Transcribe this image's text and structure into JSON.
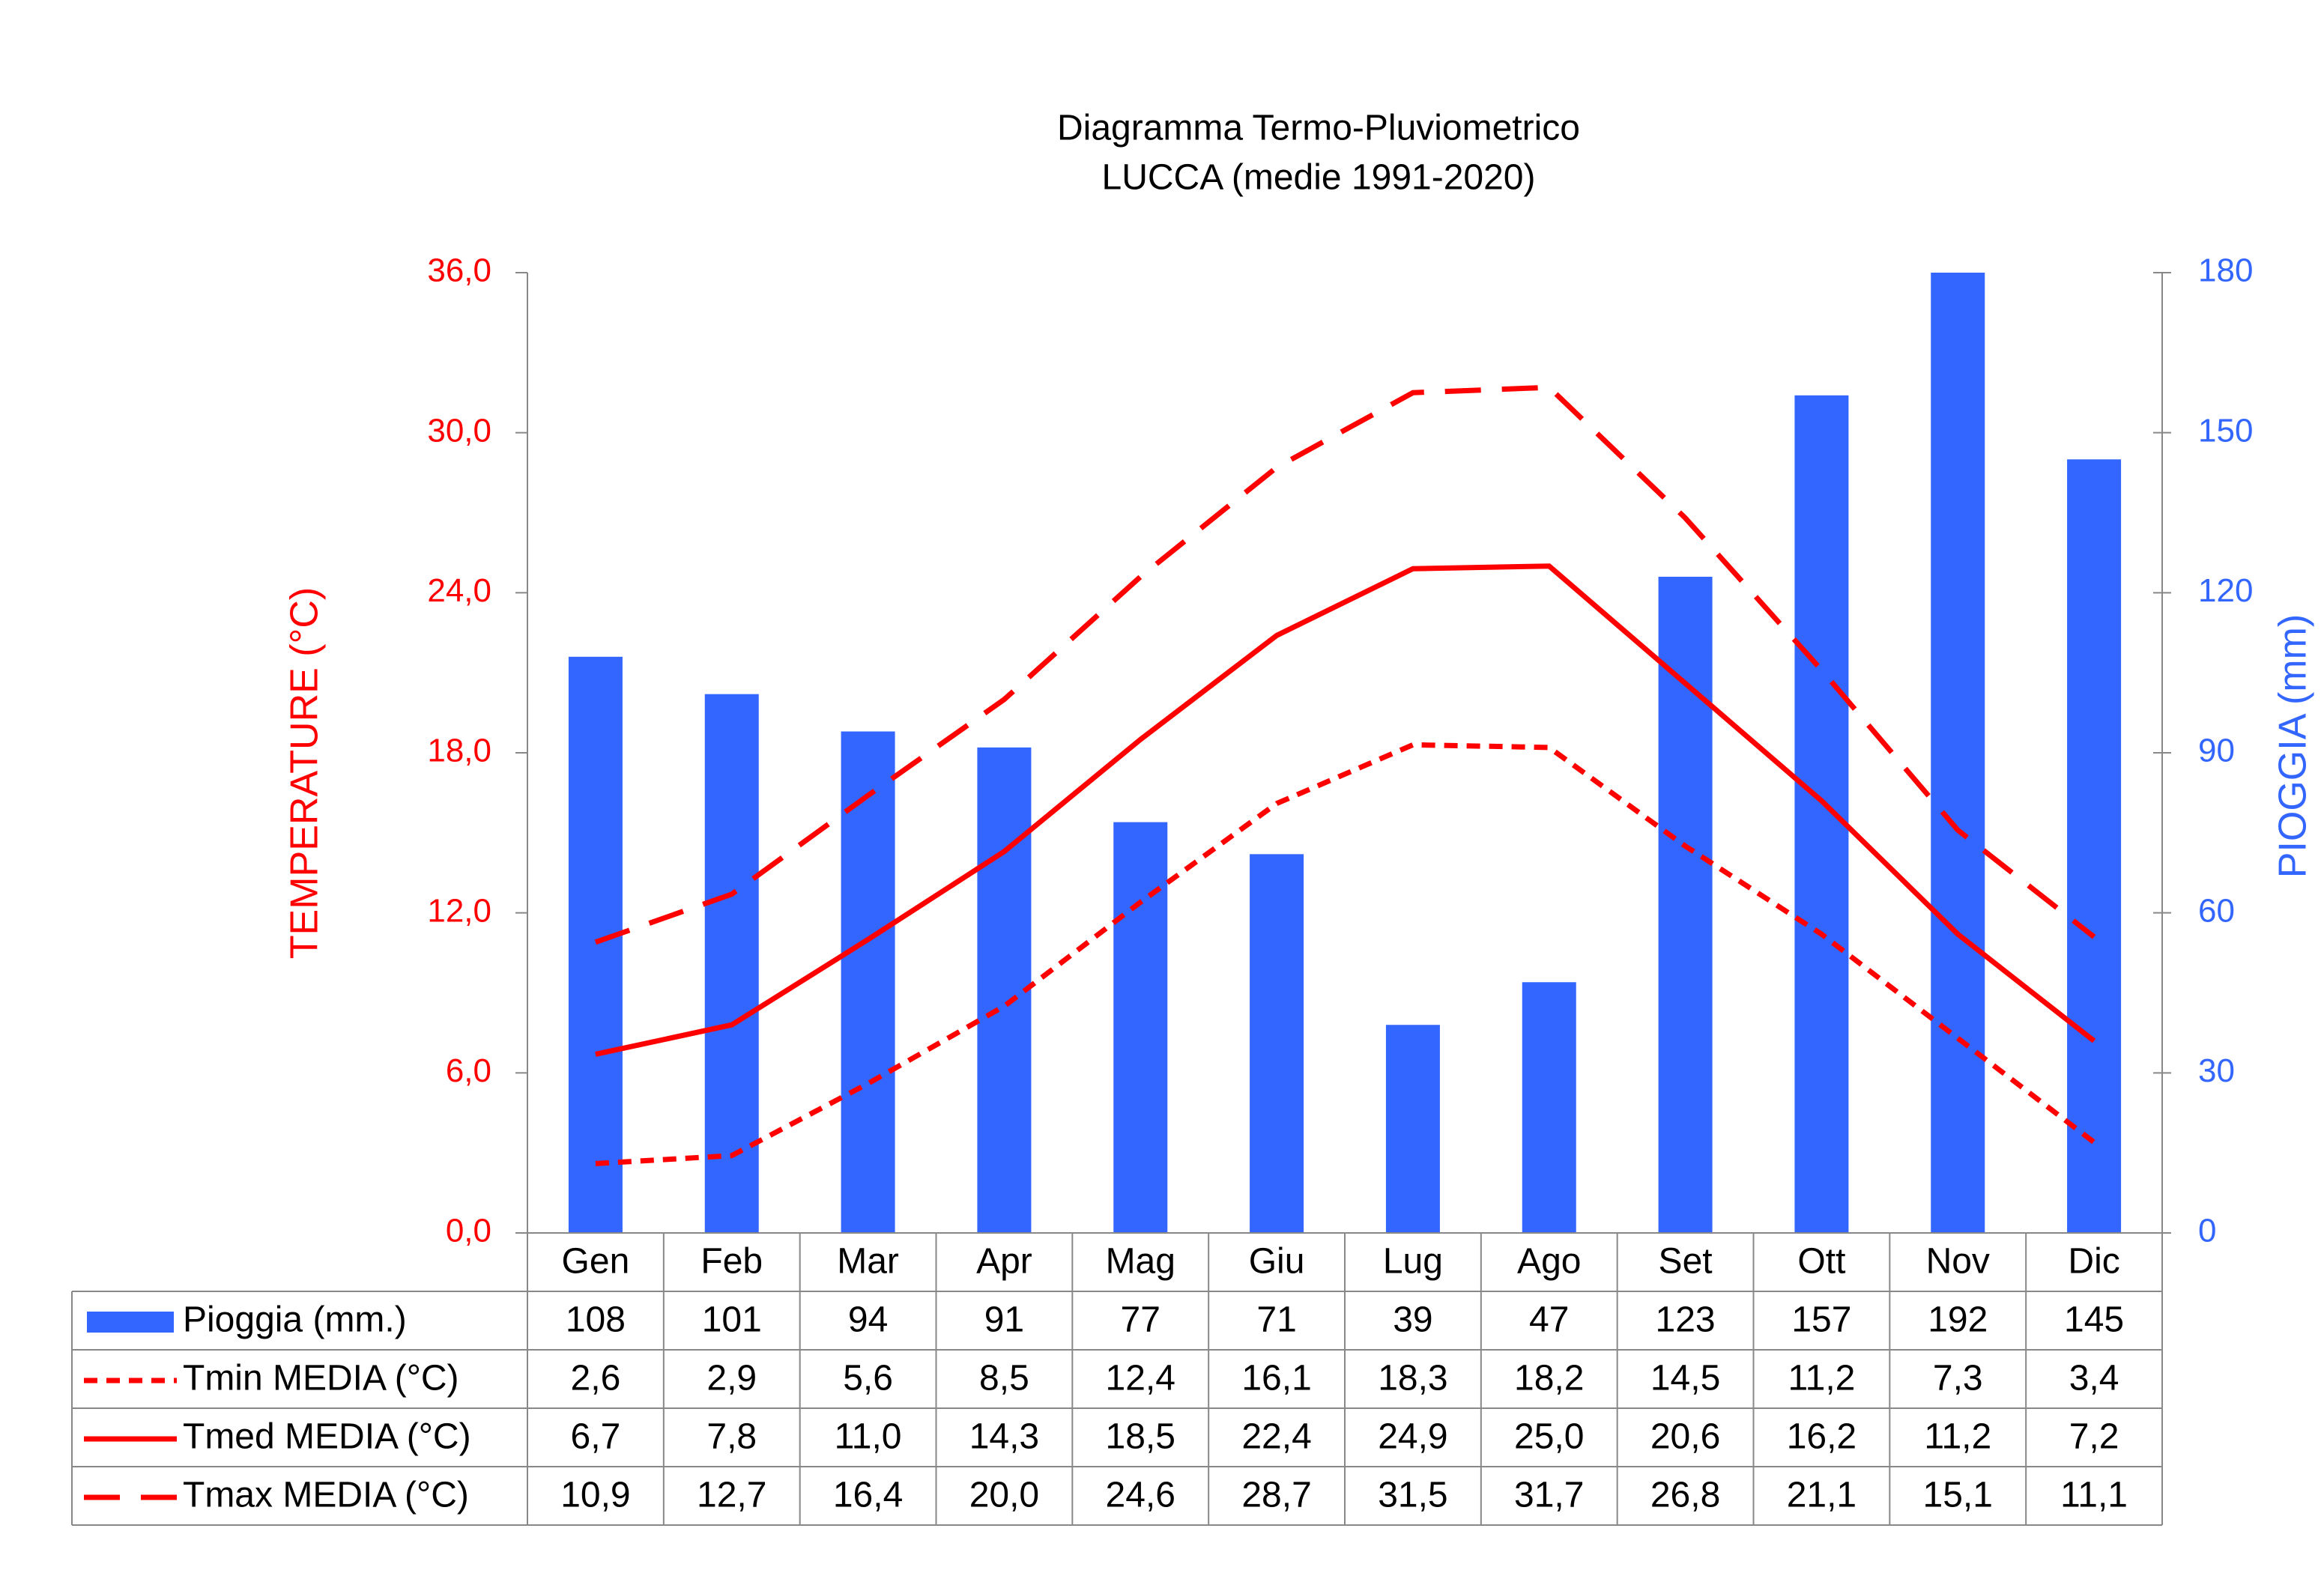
{
  "chart_data": {
    "type": "combo",
    "title": "Diagramma Termo-Pluviometrico",
    "subtitle": "LUCCA (medie 1991-2020)",
    "y_label": "TEMPERATURE (°C)",
    "y2_label": "PIOGGIA (mm)",
    "categories": [
      "Gen",
      "Feb",
      "Mar",
      "Apr",
      "Mag",
      "Giu",
      "Lug",
      "Ago",
      "Set",
      "Ott",
      "Nov",
      "Dic"
    ],
    "ylim": [
      0,
      36
    ],
    "yticks": [
      {
        "value": 0,
        "label": "0,0"
      },
      {
        "value": 6,
        "label": "6,0"
      },
      {
        "value": 12,
        "label": "12,0"
      },
      {
        "value": 18,
        "label": "18,0"
      },
      {
        "value": 24,
        "label": "24,0"
      },
      {
        "value": 30,
        "label": "30,0"
      },
      {
        "value": 36,
        "label": "36,0"
      }
    ],
    "y2lim": [
      0,
      180
    ],
    "y2ticks": [
      0,
      30,
      60,
      90,
      120,
      150,
      180
    ],
    "y_color": "#ff0000",
    "y2_color": "#3366ff",
    "series": [
      {
        "name": "Pioggia (mm.)",
        "kind": "bar",
        "axis": "y2",
        "color": "#3366ff",
        "values": [
          108,
          101,
          94,
          91,
          77,
          71,
          39,
          47,
          123,
          157,
          192,
          145
        ]
      },
      {
        "name": "Tmin MEDIA (°C)",
        "kind": "line",
        "linestyle": "dotted",
        "color": "#ff0000",
        "values": [
          2.6,
          2.9,
          5.6,
          8.5,
          12.4,
          16.1,
          18.3,
          18.2,
          14.5,
          11.2,
          7.3,
          3.4
        ],
        "value_labels": [
          "2,6",
          "2,9",
          "5,6",
          "8,5",
          "12,4",
          "16,1",
          "18,3",
          "18,2",
          "14,5",
          "11,2",
          "7,3",
          "3,4"
        ]
      },
      {
        "name": "Tmed MEDIA (°C)",
        "kind": "line",
        "linestyle": "solid",
        "color": "#ff0000",
        "values": [
          6.7,
          7.8,
          11.0,
          14.3,
          18.5,
          22.4,
          24.9,
          25.0,
          20.6,
          16.2,
          11.2,
          7.2
        ],
        "value_labels": [
          "6,7",
          "7,8",
          "11,0",
          "14,3",
          "18,5",
          "22,4",
          "24,9",
          "25,0",
          "20,6",
          "16,2",
          "11,2",
          "7,2"
        ]
      },
      {
        "name": "Tmax MEDIA (°C)",
        "kind": "line",
        "linestyle": "dashed",
        "color": "#ff0000",
        "values": [
          10.9,
          12.7,
          16.4,
          20.0,
          24.6,
          28.7,
          31.5,
          31.7,
          26.8,
          21.1,
          15.1,
          11.1
        ],
        "value_labels": [
          "10,9",
          "12,7",
          "16,4",
          "20,0",
          "24,6",
          "28,7",
          "31,5",
          "31,7",
          "26,8",
          "21,1",
          "15,1",
          "11,1"
        ]
      }
    ]
  }
}
